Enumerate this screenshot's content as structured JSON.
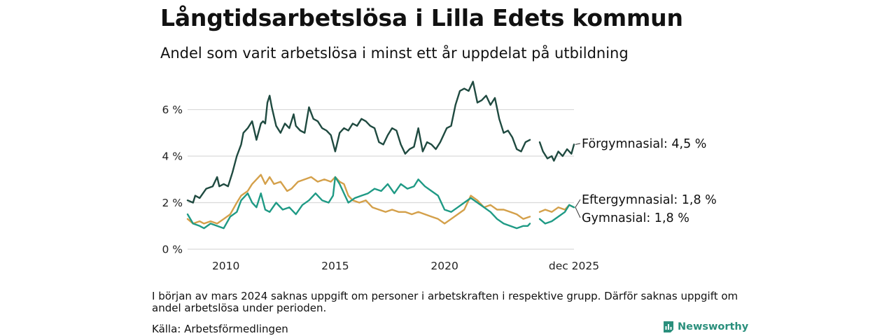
{
  "title": "Långtidsarbetslösa i Lilla Edets kommun",
  "subtitle": "Andel som varit arbetslösa i minst ett år uppdelat på utbildning",
  "note": "I början av mars 2024 saknas uppgift om personer i arbetskraften i respektive grupp. Därför saknas uppgift om andel arbetslösa under perioden.",
  "source": "Källa: Arbetsförmedlingen",
  "brand": "Newsworthy",
  "chart_data": {
    "type": "line",
    "x_axis": {
      "min": 2008.25,
      "max": 2025.917,
      "ticks": [
        2010,
        2015,
        2020
      ],
      "end_tick_label": "dec 2025"
    },
    "y_axis": {
      "min": 0,
      "max": 7.4,
      "ticks": [
        0,
        2,
        4,
        6
      ],
      "tick_labels": [
        "0 %",
        "2 %",
        "4 %",
        "6 %"
      ]
    },
    "gap": [
      2023.92,
      2024.33
    ],
    "series": [
      {
        "name": "Förgymnasial",
        "end_label": "Förgymnasial: 4,5 %",
        "color": "#1f4a40",
        "stroke_width": 2.4,
        "points": [
          [
            2008.25,
            2.1
          ],
          [
            2008.5,
            2.0
          ],
          [
            2008.6,
            2.3
          ],
          [
            2008.8,
            2.2
          ],
          [
            2009.1,
            2.6
          ],
          [
            2009.4,
            2.7
          ],
          [
            2009.6,
            3.1
          ],
          [
            2009.7,
            2.7
          ],
          [
            2009.9,
            2.8
          ],
          [
            2010.1,
            2.7
          ],
          [
            2010.3,
            3.3
          ],
          [
            2010.5,
            4.0
          ],
          [
            2010.7,
            4.5
          ],
          [
            2010.8,
            5.0
          ],
          [
            2011.0,
            5.2
          ],
          [
            2011.2,
            5.5
          ],
          [
            2011.4,
            4.7
          ],
          [
            2011.6,
            5.4
          ],
          [
            2011.7,
            5.5
          ],
          [
            2011.8,
            5.4
          ],
          [
            2011.9,
            6.3
          ],
          [
            2012.0,
            6.6
          ],
          [
            2012.1,
            6.1
          ],
          [
            2012.3,
            5.3
          ],
          [
            2012.5,
            5.0
          ],
          [
            2012.7,
            5.4
          ],
          [
            2012.9,
            5.2
          ],
          [
            2013.1,
            5.8
          ],
          [
            2013.2,
            5.3
          ],
          [
            2013.4,
            5.1
          ],
          [
            2013.6,
            5.0
          ],
          [
            2013.8,
            6.1
          ],
          [
            2014.0,
            5.6
          ],
          [
            2014.2,
            5.5
          ],
          [
            2014.4,
            5.2
          ],
          [
            2014.6,
            5.1
          ],
          [
            2014.8,
            4.9
          ],
          [
            2015.0,
            4.2
          ],
          [
            2015.2,
            5.0
          ],
          [
            2015.4,
            5.2
          ],
          [
            2015.6,
            5.1
          ],
          [
            2015.8,
            5.4
          ],
          [
            2016.0,
            5.3
          ],
          [
            2016.2,
            5.6
          ],
          [
            2016.4,
            5.5
          ],
          [
            2016.6,
            5.3
          ],
          [
            2016.8,
            5.2
          ],
          [
            2017.0,
            4.6
          ],
          [
            2017.2,
            4.5
          ],
          [
            2017.4,
            4.9
          ],
          [
            2017.6,
            5.2
          ],
          [
            2017.8,
            5.1
          ],
          [
            2018.0,
            4.5
          ],
          [
            2018.2,
            4.1
          ],
          [
            2018.4,
            4.3
          ],
          [
            2018.6,
            4.4
          ],
          [
            2018.8,
            5.2
          ],
          [
            2019.0,
            4.2
          ],
          [
            2019.2,
            4.6
          ],
          [
            2019.4,
            4.5
          ],
          [
            2019.6,
            4.3
          ],
          [
            2019.8,
            4.6
          ],
          [
            2020.0,
            5.0
          ],
          [
            2020.1,
            5.2
          ],
          [
            2020.3,
            5.3
          ],
          [
            2020.5,
            6.2
          ],
          [
            2020.7,
            6.8
          ],
          [
            2020.9,
            6.9
          ],
          [
            2021.1,
            6.8
          ],
          [
            2021.3,
            7.2
          ],
          [
            2021.5,
            6.3
          ],
          [
            2021.7,
            6.4
          ],
          [
            2021.9,
            6.6
          ],
          [
            2022.1,
            6.2
          ],
          [
            2022.3,
            6.5
          ],
          [
            2022.5,
            5.6
          ],
          [
            2022.7,
            5.0
          ],
          [
            2022.9,
            5.1
          ],
          [
            2023.1,
            4.8
          ],
          [
            2023.3,
            4.3
          ],
          [
            2023.5,
            4.2
          ],
          [
            2023.7,
            4.6
          ],
          [
            2023.9,
            4.7
          ],
          [
            2024.35,
            4.6
          ],
          [
            2024.5,
            4.2
          ],
          [
            2024.7,
            3.9
          ],
          [
            2024.9,
            4.0
          ],
          [
            2025.0,
            3.8
          ],
          [
            2025.2,
            4.2
          ],
          [
            2025.4,
            4.0
          ],
          [
            2025.6,
            4.3
          ],
          [
            2025.8,
            4.1
          ],
          [
            2025.917,
            4.5
          ]
        ]
      },
      {
        "name": "Eftergymnasial",
        "end_label": "Eftergymnasial: 1,8 %",
        "color": "#d4a04a",
        "stroke_width": 2.4,
        "points": [
          [
            2008.25,
            1.3
          ],
          [
            2008.5,
            1.1
          ],
          [
            2008.8,
            1.2
          ],
          [
            2009.0,
            1.1
          ],
          [
            2009.3,
            1.2
          ],
          [
            2009.6,
            1.1
          ],
          [
            2009.9,
            1.3
          ],
          [
            2010.2,
            1.5
          ],
          [
            2010.5,
            2.0
          ],
          [
            2010.7,
            2.3
          ],
          [
            2011.0,
            2.5
          ],
          [
            2011.2,
            2.8
          ],
          [
            2011.4,
            3.0
          ],
          [
            2011.6,
            3.2
          ],
          [
            2011.8,
            2.8
          ],
          [
            2012.0,
            3.1
          ],
          [
            2012.2,
            2.8
          ],
          [
            2012.5,
            2.9
          ],
          [
            2012.8,
            2.5
          ],
          [
            2013.0,
            2.6
          ],
          [
            2013.3,
            2.9
          ],
          [
            2013.6,
            3.0
          ],
          [
            2013.9,
            3.1
          ],
          [
            2014.2,
            2.9
          ],
          [
            2014.5,
            3.0
          ],
          [
            2014.8,
            2.9
          ],
          [
            2015.0,
            3.1
          ],
          [
            2015.2,
            2.9
          ],
          [
            2015.4,
            2.8
          ],
          [
            2015.6,
            2.3
          ],
          [
            2015.8,
            2.1
          ],
          [
            2016.1,
            2.0
          ],
          [
            2016.4,
            2.1
          ],
          [
            2016.7,
            1.8
          ],
          [
            2017.0,
            1.7
          ],
          [
            2017.3,
            1.6
          ],
          [
            2017.6,
            1.7
          ],
          [
            2017.9,
            1.6
          ],
          [
            2018.2,
            1.6
          ],
          [
            2018.5,
            1.5
          ],
          [
            2018.8,
            1.6
          ],
          [
            2019.1,
            1.5
          ],
          [
            2019.4,
            1.4
          ],
          [
            2019.7,
            1.3
          ],
          [
            2020.0,
            1.1
          ],
          [
            2020.3,
            1.3
          ],
          [
            2020.6,
            1.5
          ],
          [
            2020.9,
            1.7
          ],
          [
            2021.2,
            2.3
          ],
          [
            2021.5,
            2.1
          ],
          [
            2021.8,
            1.8
          ],
          [
            2022.1,
            1.9
          ],
          [
            2022.4,
            1.7
          ],
          [
            2022.7,
            1.7
          ],
          [
            2023.0,
            1.6
          ],
          [
            2023.3,
            1.5
          ],
          [
            2023.6,
            1.3
          ],
          [
            2023.9,
            1.4
          ],
          [
            2024.35,
            1.6
          ],
          [
            2024.6,
            1.7
          ],
          [
            2024.9,
            1.6
          ],
          [
            2025.2,
            1.8
          ],
          [
            2025.5,
            1.7
          ],
          [
            2025.7,
            1.9
          ],
          [
            2025.917,
            1.8
          ]
        ]
      },
      {
        "name": "Gymnasial",
        "end_label": "Gymnasial: 1,8 %",
        "color": "#1f9a85",
        "stroke_width": 2.4,
        "points": [
          [
            2008.25,
            1.5
          ],
          [
            2008.5,
            1.1
          ],
          [
            2008.8,
            1.0
          ],
          [
            2009.0,
            0.9
          ],
          [
            2009.3,
            1.1
          ],
          [
            2009.6,
            1.0
          ],
          [
            2009.9,
            0.9
          ],
          [
            2010.2,
            1.4
          ],
          [
            2010.5,
            1.6
          ],
          [
            2010.7,
            2.1
          ],
          [
            2011.0,
            2.4
          ],
          [
            2011.2,
            2.0
          ],
          [
            2011.4,
            1.8
          ],
          [
            2011.6,
            2.4
          ],
          [
            2011.8,
            1.7
          ],
          [
            2012.0,
            1.6
          ],
          [
            2012.3,
            2.0
          ],
          [
            2012.6,
            1.7
          ],
          [
            2012.9,
            1.8
          ],
          [
            2013.2,
            1.5
          ],
          [
            2013.5,
            1.9
          ],
          [
            2013.8,
            2.1
          ],
          [
            2014.1,
            2.4
          ],
          [
            2014.4,
            2.1
          ],
          [
            2014.7,
            2.0
          ],
          [
            2014.9,
            2.3
          ],
          [
            2015.0,
            3.1
          ],
          [
            2015.2,
            2.8
          ],
          [
            2015.4,
            2.4
          ],
          [
            2015.6,
            2.0
          ],
          [
            2015.9,
            2.2
          ],
          [
            2016.2,
            2.3
          ],
          [
            2016.5,
            2.4
          ],
          [
            2016.8,
            2.6
          ],
          [
            2017.1,
            2.5
          ],
          [
            2017.4,
            2.8
          ],
          [
            2017.7,
            2.4
          ],
          [
            2018.0,
            2.8
          ],
          [
            2018.3,
            2.6
          ],
          [
            2018.6,
            2.7
          ],
          [
            2018.8,
            3.0
          ],
          [
            2019.1,
            2.7
          ],
          [
            2019.4,
            2.5
          ],
          [
            2019.7,
            2.3
          ],
          [
            2020.0,
            1.7
          ],
          [
            2020.3,
            1.6
          ],
          [
            2020.6,
            1.8
          ],
          [
            2020.9,
            2.0
          ],
          [
            2021.2,
            2.2
          ],
          [
            2021.5,
            2.0
          ],
          [
            2021.8,
            1.8
          ],
          [
            2022.1,
            1.6
          ],
          [
            2022.4,
            1.3
          ],
          [
            2022.7,
            1.1
          ],
          [
            2023.0,
            1.0
          ],
          [
            2023.3,
            0.9
          ],
          [
            2023.6,
            1.0
          ],
          [
            2023.8,
            1.0
          ],
          [
            2023.9,
            1.1
          ],
          [
            2024.35,
            1.3
          ],
          [
            2024.6,
            1.1
          ],
          [
            2024.9,
            1.2
          ],
          [
            2025.2,
            1.4
          ],
          [
            2025.5,
            1.6
          ],
          [
            2025.7,
            1.9
          ],
          [
            2025.917,
            1.8
          ]
        ]
      }
    ]
  }
}
